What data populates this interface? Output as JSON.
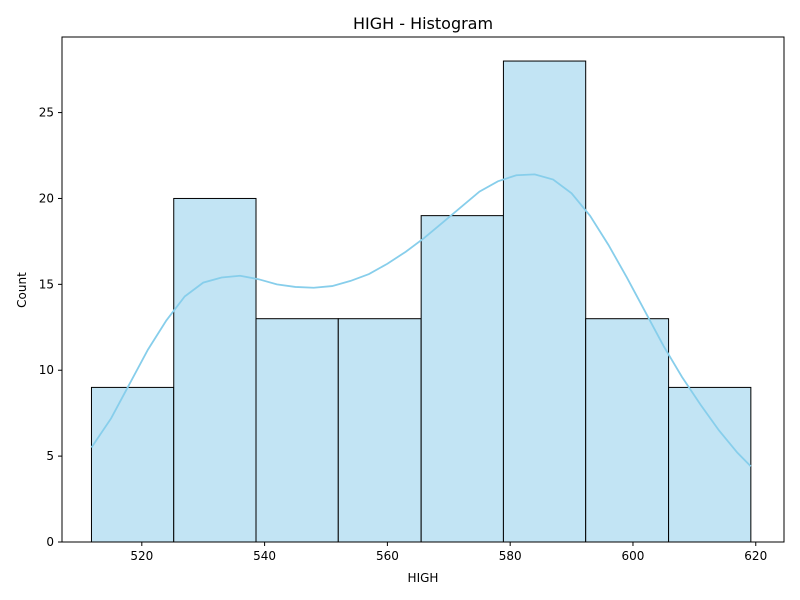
{
  "chart_data": {
    "type": "histogram",
    "title": "HIGH  - Histogram",
    "xlabel": "HIGH",
    "ylabel": "Count",
    "xlim": [
      507.0,
      624.6
    ],
    "ylim": [
      0,
      29.4
    ],
    "x_ticks": [
      520,
      540,
      560,
      580,
      600,
      620
    ],
    "y_ticks": [
      0,
      5,
      10,
      15,
      20,
      25
    ],
    "bins": [
      {
        "start": 511.8,
        "end": 525.2,
        "count": 9
      },
      {
        "start": 525.2,
        "end": 538.6,
        "count": 20
      },
      {
        "start": 538.6,
        "end": 552.0,
        "count": 13
      },
      {
        "start": 552.0,
        "end": 565.5,
        "count": 13
      },
      {
        "start": 565.5,
        "end": 578.9,
        "count": 19
      },
      {
        "start": 578.9,
        "end": 592.3,
        "count": 28
      },
      {
        "start": 592.3,
        "end": 605.8,
        "count": 13
      },
      {
        "start": 605.8,
        "end": 619.2,
        "count": 9
      }
    ],
    "kde": {
      "x": [
        511.8,
        515,
        518,
        521,
        524,
        527,
        530,
        533,
        536,
        539,
        542,
        545,
        548,
        551,
        554,
        557,
        560,
        563,
        566,
        569,
        572,
        575,
        578,
        581,
        584,
        587,
        590,
        593,
        596,
        599,
        602,
        605,
        608,
        611,
        614,
        617,
        619.2
      ],
      "y": [
        5.5,
        7.2,
        9.2,
        11.2,
        12.9,
        14.3,
        15.1,
        15.4,
        15.5,
        15.3,
        15.0,
        14.85,
        14.8,
        14.9,
        15.2,
        15.6,
        16.2,
        16.9,
        17.7,
        18.6,
        19.5,
        20.4,
        21.0,
        21.35,
        21.4,
        21.1,
        20.3,
        19.0,
        17.3,
        15.4,
        13.4,
        11.4,
        9.6,
        8.0,
        6.5,
        5.2,
        4.4
      ]
    },
    "colors": {
      "bar_fill": "#c2e4f4",
      "bar_edge": "#000000",
      "kde_line": "#87ceeb"
    },
    "grid": false,
    "legend": "none"
  }
}
